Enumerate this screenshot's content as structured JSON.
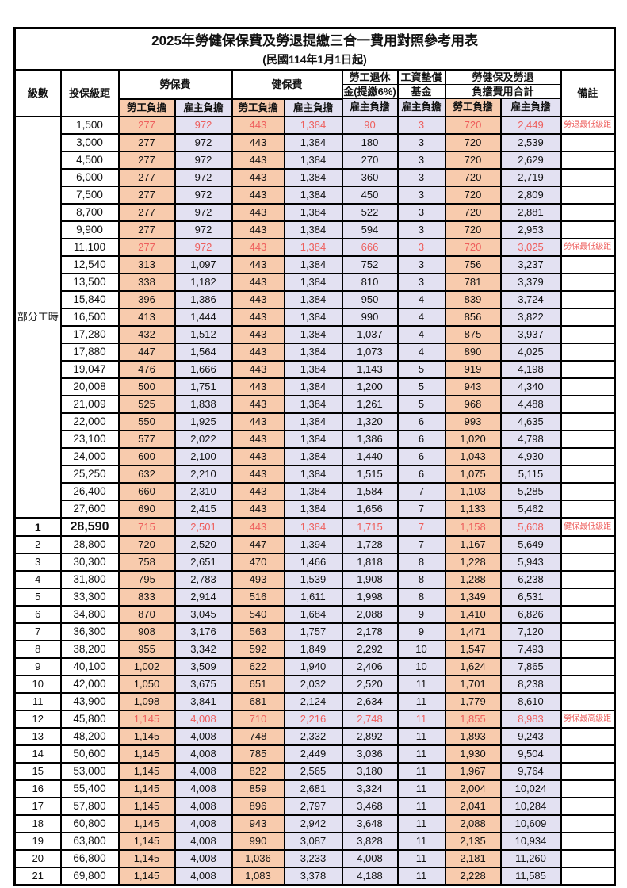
{
  "title": "2025年勞健保保費及勞退提繳三合一費用對照參考用表",
  "subtitle": "(民國114年1月1日起)",
  "colors": {
    "employee_column_bg": "#F8CBAD",
    "employer_column_bg": "#E3E1F2",
    "highlight_red": "#EE5E5C",
    "border": "#000000"
  },
  "header": {
    "level_label": "級數",
    "salary_label": "投保級距",
    "labor_group": "勞保費",
    "health_group": "健保費",
    "pension_group_line1": "勞工退休",
    "pension_group_line2": "金(提繳6%)",
    "wage_fund_line1": "工資墊償",
    "wage_fund_line2": "基金",
    "total_group_line1": "勞健保及勞退",
    "total_group_line2": "負擔費用合計",
    "remark_label": "備註",
    "employee_label": "勞工負擔",
    "employer_label": "雇主負擔"
  },
  "part_time_label": "部分工時",
  "column_semantics": [
    "labor-insurance-employee",
    "labor-insurance-employer",
    "health-insurance-employee",
    "health-insurance-employer",
    "pension-employer",
    "wage-arrears-fund-employer",
    "total-employee",
    "total-employer"
  ],
  "rows": [
    {
      "level": "",
      "salary": "1,500",
      "values": [
        "277",
        "972",
        "443",
        "1,384",
        "90",
        "3",
        "720",
        "2,449"
      ],
      "remark": "勞退最低級距",
      "red": true
    },
    {
      "level": "",
      "salary": "3,000",
      "values": [
        "277",
        "972",
        "443",
        "1,384",
        "180",
        "3",
        "720",
        "2,539"
      ],
      "remark": "",
      "red": false
    },
    {
      "level": "",
      "salary": "4,500",
      "values": [
        "277",
        "972",
        "443",
        "1,384",
        "270",
        "3",
        "720",
        "2,629"
      ],
      "remark": "",
      "red": false
    },
    {
      "level": "",
      "salary": "6,000",
      "values": [
        "277",
        "972",
        "443",
        "1,384",
        "360",
        "3",
        "720",
        "2,719"
      ],
      "remark": "",
      "red": false
    },
    {
      "level": "",
      "salary": "7,500",
      "values": [
        "277",
        "972",
        "443",
        "1,384",
        "450",
        "3",
        "720",
        "2,809"
      ],
      "remark": "",
      "red": false
    },
    {
      "level": "",
      "salary": "8,700",
      "values": [
        "277",
        "972",
        "443",
        "1,384",
        "522",
        "3",
        "720",
        "2,881"
      ],
      "remark": "",
      "red": false
    },
    {
      "level": "",
      "salary": "9,900",
      "values": [
        "277",
        "972",
        "443",
        "1,384",
        "594",
        "3",
        "720",
        "2,953"
      ],
      "remark": "",
      "red": false
    },
    {
      "level": "",
      "salary": "11,100",
      "values": [
        "277",
        "972",
        "443",
        "1,384",
        "666",
        "3",
        "720",
        "3,025"
      ],
      "remark": "勞保最低級距",
      "red": true
    },
    {
      "level": "",
      "salary": "12,540",
      "values": [
        "313",
        "1,097",
        "443",
        "1,384",
        "752",
        "3",
        "756",
        "3,237"
      ],
      "remark": "",
      "red": false
    },
    {
      "level": "",
      "salary": "13,500",
      "values": [
        "338",
        "1,182",
        "443",
        "1,384",
        "810",
        "3",
        "781",
        "3,379"
      ],
      "remark": "",
      "red": false
    },
    {
      "level": "",
      "salary": "15,840",
      "values": [
        "396",
        "1,386",
        "443",
        "1,384",
        "950",
        "4",
        "839",
        "3,724"
      ],
      "remark": "",
      "red": false
    },
    {
      "level": "",
      "salary": "16,500",
      "values": [
        "413",
        "1,444",
        "443",
        "1,384",
        "990",
        "4",
        "856",
        "3,822"
      ],
      "remark": "",
      "red": false
    },
    {
      "level": "",
      "salary": "17,280",
      "values": [
        "432",
        "1,512",
        "443",
        "1,384",
        "1,037",
        "4",
        "875",
        "3,937"
      ],
      "remark": "",
      "red": false
    },
    {
      "level": "",
      "salary": "17,880",
      "values": [
        "447",
        "1,564",
        "443",
        "1,384",
        "1,073",
        "4",
        "890",
        "4,025"
      ],
      "remark": "",
      "red": false
    },
    {
      "level": "",
      "salary": "19,047",
      "values": [
        "476",
        "1,666",
        "443",
        "1,384",
        "1,143",
        "5",
        "919",
        "4,198"
      ],
      "remark": "",
      "red": false
    },
    {
      "level": "",
      "salary": "20,008",
      "values": [
        "500",
        "1,751",
        "443",
        "1,384",
        "1,200",
        "5",
        "943",
        "4,340"
      ],
      "remark": "",
      "red": false
    },
    {
      "level": "",
      "salary": "21,009",
      "values": [
        "525",
        "1,838",
        "443",
        "1,384",
        "1,261",
        "5",
        "968",
        "4,488"
      ],
      "remark": "",
      "red": false
    },
    {
      "level": "",
      "salary": "22,000",
      "values": [
        "550",
        "1,925",
        "443",
        "1,384",
        "1,320",
        "6",
        "993",
        "4,635"
      ],
      "remark": "",
      "red": false
    },
    {
      "level": "",
      "salary": "23,100",
      "values": [
        "577",
        "2,022",
        "443",
        "1,384",
        "1,386",
        "6",
        "1,020",
        "4,798"
      ],
      "remark": "",
      "red": false
    },
    {
      "level": "",
      "salary": "24,000",
      "values": [
        "600",
        "2,100",
        "443",
        "1,384",
        "1,440",
        "6",
        "1,043",
        "4,930"
      ],
      "remark": "",
      "red": false
    },
    {
      "level": "",
      "salary": "25,250",
      "values": [
        "632",
        "2,210",
        "443",
        "1,384",
        "1,515",
        "6",
        "1,075",
        "5,115"
      ],
      "remark": "",
      "red": false
    },
    {
      "level": "",
      "salary": "26,400",
      "values": [
        "660",
        "2,310",
        "443",
        "1,384",
        "1,584",
        "7",
        "1,103",
        "5,285"
      ],
      "remark": "",
      "red": false
    },
    {
      "level": "",
      "salary": "27,600",
      "values": [
        "690",
        "2,415",
        "443",
        "1,384",
        "1,656",
        "7",
        "1,133",
        "5,462"
      ],
      "remark": "",
      "red": false
    },
    {
      "level": "1",
      "salary": "28,590",
      "values": [
        "715",
        "2,501",
        "443",
        "1,384",
        "1,715",
        "7",
        "1,158",
        "5,608"
      ],
      "remark": "健保最低級距",
      "red": true,
      "emphasis": true
    },
    {
      "level": "2",
      "salary": "28,800",
      "values": [
        "720",
        "2,520",
        "447",
        "1,394",
        "1,728",
        "7",
        "1,167",
        "5,649"
      ],
      "remark": "",
      "red": false
    },
    {
      "level": "3",
      "salary": "30,300",
      "values": [
        "758",
        "2,651",
        "470",
        "1,466",
        "1,818",
        "8",
        "1,228",
        "5,943"
      ],
      "remark": "",
      "red": false
    },
    {
      "level": "4",
      "salary": "31,800",
      "values": [
        "795",
        "2,783",
        "493",
        "1,539",
        "1,908",
        "8",
        "1,288",
        "6,238"
      ],
      "remark": "",
      "red": false
    },
    {
      "level": "5",
      "salary": "33,300",
      "values": [
        "833",
        "2,914",
        "516",
        "1,611",
        "1,998",
        "8",
        "1,349",
        "6,531"
      ],
      "remark": "",
      "red": false
    },
    {
      "level": "6",
      "salary": "34,800",
      "values": [
        "870",
        "3,045",
        "540",
        "1,684",
        "2,088",
        "9",
        "1,410",
        "6,826"
      ],
      "remark": "",
      "red": false
    },
    {
      "level": "7",
      "salary": "36,300",
      "values": [
        "908",
        "3,176",
        "563",
        "1,757",
        "2,178",
        "9",
        "1,471",
        "7,120"
      ],
      "remark": "",
      "red": false
    },
    {
      "level": "8",
      "salary": "38,200",
      "values": [
        "955",
        "3,342",
        "592",
        "1,849",
        "2,292",
        "10",
        "1,547",
        "7,493"
      ],
      "remark": "",
      "red": false
    },
    {
      "level": "9",
      "salary": "40,100",
      "values": [
        "1,002",
        "3,509",
        "622",
        "1,940",
        "2,406",
        "10",
        "1,624",
        "7,865"
      ],
      "remark": "",
      "red": false
    },
    {
      "level": "10",
      "salary": "42,000",
      "values": [
        "1,050",
        "3,675",
        "651",
        "2,032",
        "2,520",
        "11",
        "1,701",
        "8,238"
      ],
      "remark": "",
      "red": false
    },
    {
      "level": "11",
      "salary": "43,900",
      "values": [
        "1,098",
        "3,841",
        "681",
        "2,124",
        "2,634",
        "11",
        "1,779",
        "8,610"
      ],
      "remark": "",
      "red": false
    },
    {
      "level": "12",
      "salary": "45,800",
      "values": [
        "1,145",
        "4,008",
        "710",
        "2,216",
        "2,748",
        "11",
        "1,855",
        "8,983"
      ],
      "remark": "勞保最高級距",
      "red": true
    },
    {
      "level": "13",
      "salary": "48,200",
      "values": [
        "1,145",
        "4,008",
        "748",
        "2,332",
        "2,892",
        "11",
        "1,893",
        "9,243"
      ],
      "remark": "",
      "red": false
    },
    {
      "level": "14",
      "salary": "50,600",
      "values": [
        "1,145",
        "4,008",
        "785",
        "2,449",
        "3,036",
        "11",
        "1,930",
        "9,504"
      ],
      "remark": "",
      "red": false
    },
    {
      "level": "15",
      "salary": "53,000",
      "values": [
        "1,145",
        "4,008",
        "822",
        "2,565",
        "3,180",
        "11",
        "1,967",
        "9,764"
      ],
      "remark": "",
      "red": false
    },
    {
      "level": "16",
      "salary": "55,400",
      "values": [
        "1,145",
        "4,008",
        "859",
        "2,681",
        "3,324",
        "11",
        "2,004",
        "10,024"
      ],
      "remark": "",
      "red": false
    },
    {
      "level": "17",
      "salary": "57,800",
      "values": [
        "1,145",
        "4,008",
        "896",
        "2,797",
        "3,468",
        "11",
        "2,041",
        "10,284"
      ],
      "remark": "",
      "red": false
    },
    {
      "level": "18",
      "salary": "60,800",
      "values": [
        "1,145",
        "4,008",
        "943",
        "2,942",
        "3,648",
        "11",
        "2,088",
        "10,609"
      ],
      "remark": "",
      "red": false
    },
    {
      "level": "19",
      "salary": "63,800",
      "values": [
        "1,145",
        "4,008",
        "990",
        "3,087",
        "3,828",
        "11",
        "2,135",
        "10,934"
      ],
      "remark": "",
      "red": false
    },
    {
      "level": "20",
      "salary": "66,800",
      "values": [
        "1,145",
        "4,008",
        "1,036",
        "3,233",
        "4,008",
        "11",
        "2,181",
        "11,260"
      ],
      "remark": "",
      "red": false
    },
    {
      "level": "21",
      "salary": "69,800",
      "values": [
        "1,145",
        "4,008",
        "1,083",
        "3,378",
        "4,188",
        "11",
        "2,228",
        "11,585"
      ],
      "remark": "",
      "red": false
    }
  ]
}
